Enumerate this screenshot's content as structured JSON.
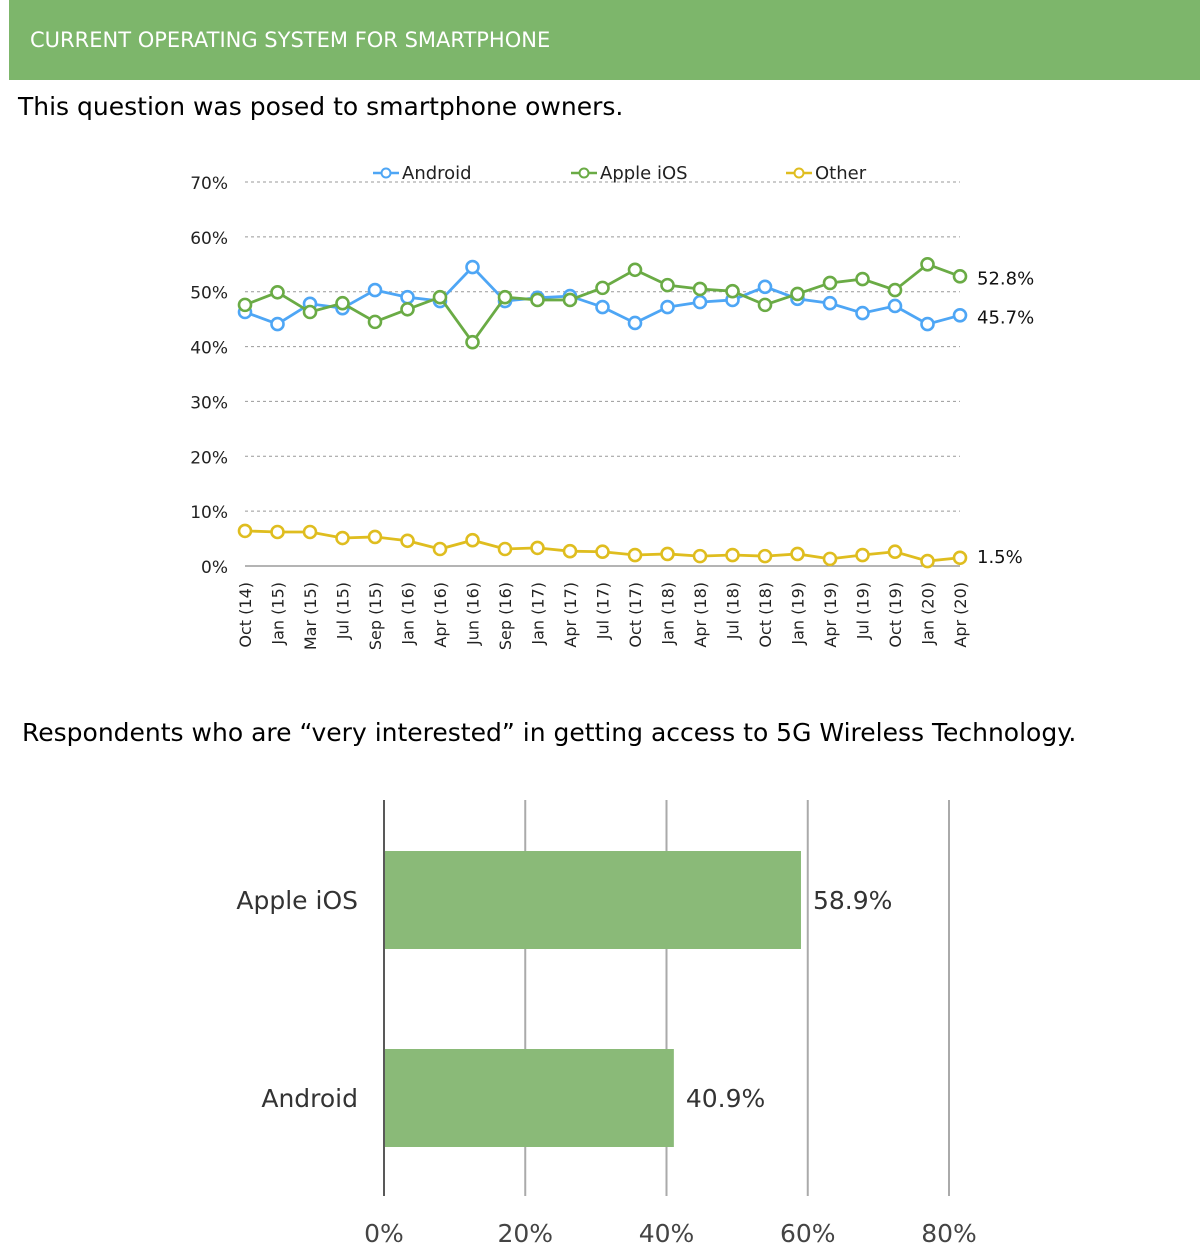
{
  "header": {
    "title": "CURRENT OPERATING SYSTEM FOR SMARTPHONE"
  },
  "subtitles": {
    "line": "This question was posed to smartphone owners.",
    "bar": "Respondents who are “very interested” in getting access to 5G Wireless Technology."
  },
  "chart_data": [
    {
      "type": "line",
      "title": "",
      "ylim": [
        0,
        70
      ],
      "yticks": [
        "0%",
        "10%",
        "20%",
        "30%",
        "40%",
        "50%",
        "60%",
        "70%"
      ],
      "grid": true,
      "legend": "top",
      "categories": [
        "Oct (14)",
        "Jan (15)",
        "Mar (15)",
        "Jul (15)",
        "Sep (15)",
        "Jan (16)",
        "Apr (16)",
        "Jun (16)",
        "Sep (16)",
        "Jan (17)",
        "Apr (17)",
        "Jul (17)",
        "Oct (17)",
        "Jan (18)",
        "Apr (18)",
        "Jul (18)",
        "Oct (18)",
        "Jan (19)",
        "Apr (19)",
        "Jul (19)",
        "Oct (19)",
        "Jan (20)",
        "Apr (20)"
      ],
      "series": [
        {
          "name": "Android",
          "color": "#4ea6f5",
          "end_label": "45.7%",
          "values": [
            46.3,
            44.1,
            47.8,
            47.0,
            50.3,
            49.0,
            48.3,
            54.5,
            48.3,
            48.9,
            49.2,
            47.2,
            44.3,
            47.2,
            48.1,
            48.5,
            50.9,
            48.7,
            47.9,
            46.1,
            47.4,
            44.1,
            45.7
          ]
        },
        {
          "name": "Apple iOS",
          "color": "#6aab45",
          "end_label": "52.8%",
          "values": [
            47.6,
            49.9,
            46.3,
            47.9,
            44.5,
            46.8,
            49.0,
            40.8,
            49.0,
            48.5,
            48.5,
            50.7,
            54.0,
            51.2,
            50.5,
            50.1,
            47.6,
            49.6,
            51.6,
            52.3,
            50.3,
            55.0,
            52.8
          ]
        },
        {
          "name": "Other",
          "color": "#dfbd1f",
          "end_label": "1.5%",
          "values": [
            6.4,
            6.2,
            6.2,
            5.1,
            5.3,
            4.6,
            3.1,
            4.7,
            3.1,
            3.3,
            2.7,
            2.6,
            2.0,
            2.2,
            1.8,
            2.0,
            1.8,
            2.2,
            1.3,
            2.0,
            2.6,
            0.9,
            1.5
          ]
        }
      ]
    },
    {
      "type": "bar",
      "orientation": "horizontal",
      "categories": [
        "Apple iOS",
        "Android"
      ],
      "values": [
        58.9,
        40.9
      ],
      "labels": [
        "58.9%",
        "40.9%"
      ],
      "xlim": [
        0,
        80
      ],
      "xticks": [
        "0%",
        "20%",
        "40%",
        "60%",
        "80%"
      ],
      "grid": true,
      "color": "#8aba78"
    }
  ]
}
